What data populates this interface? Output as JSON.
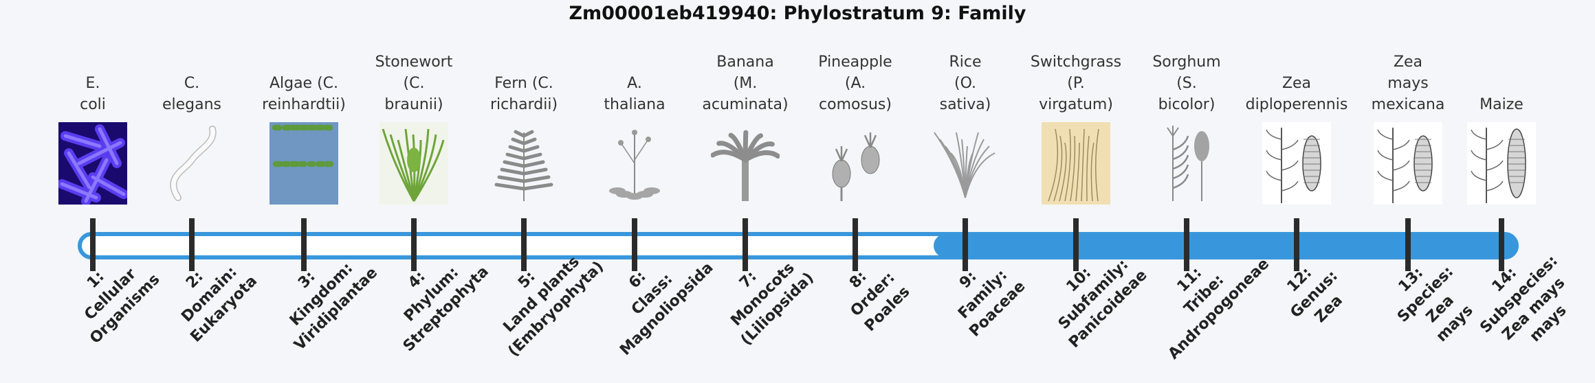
{
  "title": "Zm00001eb419940: Phylostratum 9: Family",
  "current_stratum": 9,
  "colors": {
    "track": "#3897dc",
    "tick": "#2b2b2b",
    "empty": "#ffffff"
  },
  "strata": [
    {
      "num": "1:",
      "rank": "Cellular",
      "rank2": "Organisms",
      "org": [
        "E.",
        "coli"
      ],
      "icon": "e-coli-image"
    },
    {
      "num": "2:",
      "rank": "Domain:",
      "rank2": "Eukaryota",
      "org": [
        "C.",
        "elegans"
      ],
      "icon": "c-elegans-image"
    },
    {
      "num": "3:",
      "rank": "Kingdom:",
      "rank2": "Viridiplantae",
      "org": [
        "Algae (C.",
        "reinhardtii)"
      ],
      "icon": "algae-image"
    },
    {
      "num": "4:",
      "rank": "Phylum:",
      "rank2": "Streptophyta",
      "org": [
        "Stonewort",
        "(C.",
        "braunii)"
      ],
      "icon": "stonewort-image"
    },
    {
      "num": "5:",
      "rank": "Land plants",
      "rank2": "(Embryophyta)",
      "org": [
        "Fern (C.",
        "richardii)"
      ],
      "icon": "fern-image"
    },
    {
      "num": "6:",
      "rank": "Class:",
      "rank2": "Magnoliopsida",
      "org": [
        "A.",
        "thaliana"
      ],
      "icon": "arabidopsis-image"
    },
    {
      "num": "7:",
      "rank": "Monocots",
      "rank2": "(Liliopsida)",
      "org": [
        "Banana",
        "(M.",
        "acuminata)"
      ],
      "icon": "banana-image"
    },
    {
      "num": "8:",
      "rank": "Order:",
      "rank2": "Poales",
      "org": [
        "Pineapple",
        "(A.",
        "comosus)"
      ],
      "icon": "pineapple-image"
    },
    {
      "num": "9:",
      "rank": "Family:",
      "rank2": "Poaceae",
      "org": [
        "Rice",
        "(O.",
        "sativa)"
      ],
      "icon": "rice-image"
    },
    {
      "num": "10:",
      "rank": "Subfamily:",
      "rank2": "Panicoideae",
      "org": [
        "Switchgrass",
        "(P.",
        "virgatum)"
      ],
      "icon": "switchgrass-image"
    },
    {
      "num": "11:",
      "rank": "Tribe:",
      "rank2": "Andropogoneae",
      "org": [
        "Sorghum",
        "(S.",
        "bicolor)"
      ],
      "icon": "sorghum-image"
    },
    {
      "num": "12:",
      "rank": "Genus:",
      "rank2": "Zea",
      "org": [
        "Zea",
        "diploperennis"
      ],
      "icon": "zea-diploperennis-image"
    },
    {
      "num": "13:",
      "rank": "Species:",
      "rank2": "Zea",
      "rank3": "mays",
      "org": [
        "Zea",
        "mays",
        "mexicana"
      ],
      "icon": "zea-mexicana-image"
    },
    {
      "num": "14:",
      "rank": "Subspecies:",
      "rank2": "Zea mays",
      "rank3": "mays",
      "org": [
        "Maize"
      ],
      "icon": "maize-image"
    }
  ]
}
